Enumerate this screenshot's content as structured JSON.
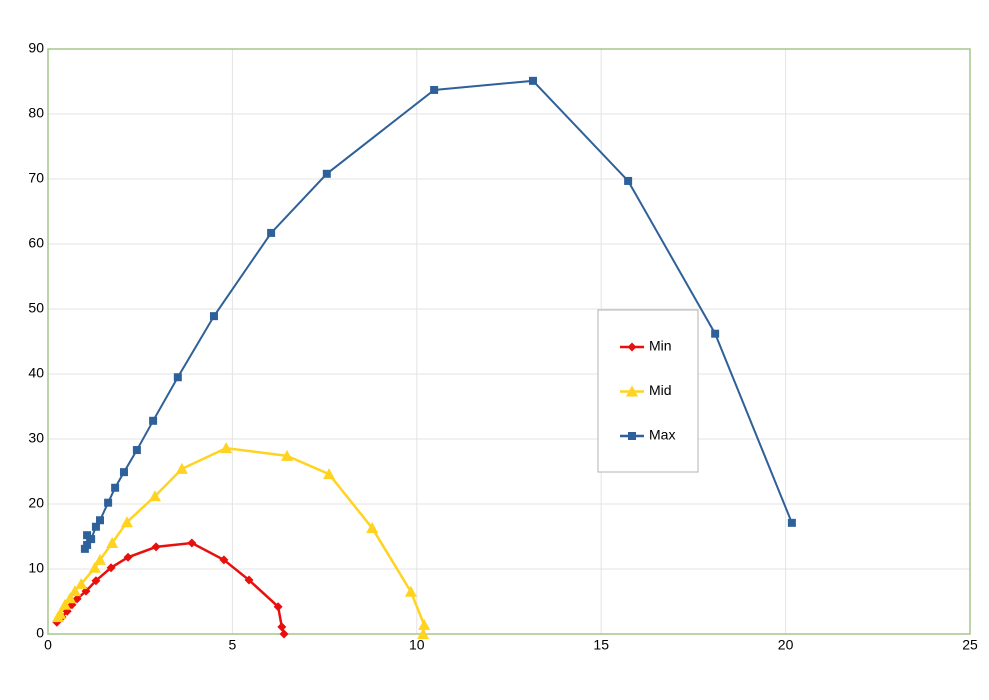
{
  "chart_data": {
    "type": "line",
    "xlim": [
      0,
      25
    ],
    "xticks": [
      0,
      5,
      10,
      15,
      20,
      25
    ],
    "ylim": [
      0,
      90
    ],
    "yticks": [
      0,
      10,
      20,
      30,
      40,
      50,
      60,
      70,
      80,
      90
    ],
    "grid": true,
    "legend": "center-right",
    "series": [
      {
        "name": "Min",
        "color": "#e8100e",
        "marker": "diamond",
        "x": [
          0.24,
          0.38,
          0.52,
          0.65,
          0.79,
          1.03,
          1.3,
          1.71,
          2.17,
          2.93,
          3.9,
          4.77,
          5.45,
          6.24,
          6.34,
          6.4
        ],
        "values": [
          1.8,
          2.6,
          3.5,
          4.5,
          5.4,
          6.6,
          8.2,
          10.2,
          11.8,
          13.4,
          14.0,
          11.4,
          8.3,
          4.2,
          1.1,
          0
        ]
      },
      {
        "name": "Mid",
        "color": "#ffd320",
        "marker": "triangle",
        "x": [
          0.27,
          0.33,
          0.46,
          0.6,
          0.73,
          0.9,
          1.27,
          1.41,
          1.74,
          2.14,
          2.9,
          3.63,
          4.83,
          6.48,
          7.62,
          8.79,
          9.84,
          10.2,
          10.17
        ],
        "values": [
          2.6,
          3.1,
          4.5,
          5.5,
          6.6,
          7.7,
          10.2,
          11.4,
          14.0,
          17.2,
          21.2,
          25.4,
          28.6,
          27.4,
          24.6,
          16.3,
          6.5,
          1.4,
          0
        ]
      },
      {
        "name": "Max",
        "color": "#2e6099",
        "marker": "square",
        "x": [
          1.0,
          1.06,
          1.06,
          1.17,
          1.3,
          1.41,
          1.63,
          1.82,
          2.06,
          2.41,
          2.85,
          3.52,
          4.5,
          6.05,
          7.56,
          10.47,
          13.15,
          15.73,
          18.09,
          20.17
        ],
        "values": [
          13.1,
          13.7,
          15.2,
          14.6,
          16.5,
          17.5,
          20.2,
          22.5,
          24.9,
          28.3,
          32.8,
          39.5,
          48.9,
          61.7,
          70.8,
          83.7,
          85.1,
          69.7,
          46.2,
          17.1
        ]
      }
    ]
  }
}
